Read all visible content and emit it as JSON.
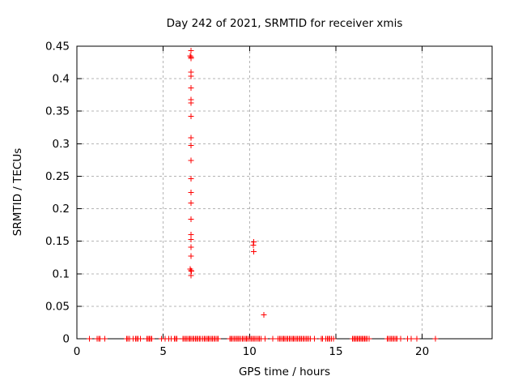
{
  "colors": {
    "marker": "#ff0000",
    "grid": "#b5b5b5",
    "axis": "#000000",
    "background": "#ffffff",
    "text": "#000000"
  },
  "chart_data": {
    "type": "scatter",
    "title": "Day 242 of 2021, SRMTID for receiver xmis",
    "xlabel": "GPS time / hours",
    "ylabel": "SRMTID / TECUs",
    "xlim": [
      0,
      24.05
    ],
    "ylim": [
      0,
      0.45
    ],
    "x_ticks": [
      0,
      5,
      10,
      15,
      20
    ],
    "x_tick_labels": [
      "0",
      "5",
      "10",
      "15",
      "20"
    ],
    "y_ticks": [
      0,
      0.05,
      0.1,
      0.15,
      0.2,
      0.25,
      0.3,
      0.35,
      0.4,
      0.45
    ],
    "y_tick_labels": [
      "0",
      "0.05",
      "0.1",
      "0.15",
      "0.2",
      "0.25",
      "0.3",
      "0.35",
      "0.4",
      "0.45"
    ],
    "grid": true,
    "legend": false,
    "marker": {
      "shape": "plus",
      "color": "#ff0000",
      "size": 7
    },
    "series": [
      {
        "name": "SRMTID",
        "points_nonzero": [
          [
            6.6,
            0.443
          ],
          [
            6.57,
            0.435
          ],
          [
            6.62,
            0.433
          ],
          [
            6.6,
            0.431
          ],
          [
            6.6,
            0.41
          ],
          [
            6.62,
            0.404
          ],
          [
            6.6,
            0.386
          ],
          [
            6.6,
            0.368
          ],
          [
            6.62,
            0.363
          ],
          [
            6.6,
            0.342
          ],
          [
            6.6,
            0.309
          ],
          [
            6.6,
            0.297
          ],
          [
            6.6,
            0.274
          ],
          [
            6.6,
            0.246
          ],
          [
            6.6,
            0.225
          ],
          [
            6.6,
            0.209
          ],
          [
            6.6,
            0.184
          ],
          [
            6.6,
            0.16
          ],
          [
            6.62,
            0.153
          ],
          [
            6.6,
            0.141
          ],
          [
            6.6,
            0.127
          ],
          [
            6.56,
            0.107
          ],
          [
            6.6,
            0.105
          ],
          [
            6.63,
            0.104
          ],
          [
            6.6,
            0.097
          ],
          [
            10.24,
            0.149
          ],
          [
            10.21,
            0.144
          ],
          [
            10.24,
            0.134
          ],
          [
            10.82,
            0.037
          ]
        ],
        "points_zero_x": [
          0.72,
          1.18,
          1.26,
          1.34,
          1.61,
          2.88,
          2.96,
          3.04,
          3.25,
          3.4,
          3.47,
          3.55,
          3.67,
          4.05,
          4.12,
          4.19,
          4.26,
          4.33,
          4.89,
          5.12,
          5.31,
          5.47,
          5.64,
          5.72,
          5.8,
          6.14,
          6.22,
          6.3,
          6.38,
          6.46,
          6.54,
          6.62,
          6.7,
          6.78,
          6.86,
          6.94,
          7.02,
          7.1,
          7.18,
          7.3,
          7.38,
          7.46,
          7.54,
          7.62,
          7.7,
          7.78,
          7.86,
          7.94,
          8.02,
          8.1,
          8.18,
          8.85,
          8.93,
          9.01,
          9.09,
          9.17,
          9.25,
          9.33,
          9.41,
          9.5,
          9.58,
          9.66,
          9.74,
          9.82,
          9.9,
          9.98,
          10.08,
          10.16,
          10.24,
          10.32,
          10.4,
          10.5,
          10.58,
          10.66,
          10.9,
          11.35,
          11.66,
          11.74,
          11.82,
          11.9,
          11.98,
          12.06,
          12.14,
          12.22,
          12.3,
          12.38,
          12.46,
          12.54,
          12.62,
          12.7,
          12.78,
          12.86,
          12.94,
          13.02,
          13.1,
          13.18,
          13.26,
          13.34,
          13.42,
          13.53,
          13.76,
          14.15,
          14.22,
          14.42,
          14.5,
          14.58,
          14.66,
          14.74,
          14.85,
          15.97,
          16.04,
          16.11,
          16.18,
          16.25,
          16.32,
          16.39,
          16.46,
          16.53,
          16.6,
          16.67,
          16.74,
          16.81,
          16.92,
          17.98,
          18.06,
          18.14,
          18.22,
          18.3,
          18.38,
          18.46,
          18.54,
          18.76,
          19.14,
          19.36,
          19.7,
          20.78
        ]
      }
    ]
  }
}
